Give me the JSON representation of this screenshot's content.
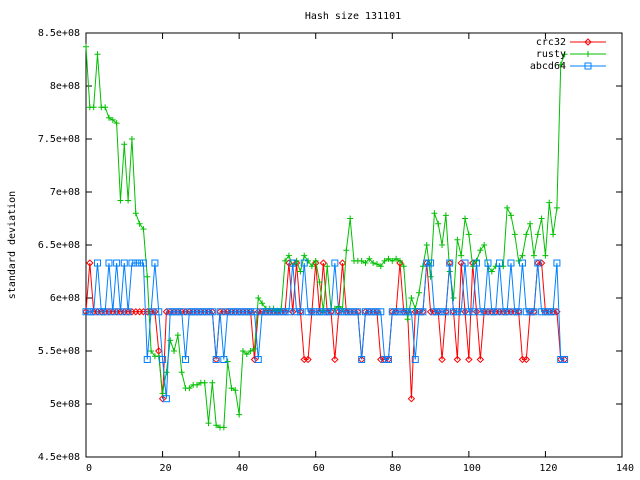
{
  "chart_data": {
    "type": "line",
    "title": "Hash size 131101",
    "y_label": "standard deviation",
    "xlim": [
      0,
      140
    ],
    "xticks": [
      0,
      20,
      40,
      60,
      80,
      100,
      120,
      140
    ],
    "ylim": [
      450000000.0,
      850000000.0
    ],
    "yticks": [
      {
        "value": 450000000.0,
        "label": "4.5e+08"
      },
      {
        "value": 500000000.0,
        "label": "5e+08"
      },
      {
        "value": 550000000.0,
        "label": "5.5e+08"
      },
      {
        "value": 600000000.0,
        "label": "6e+08"
      },
      {
        "value": 650000000.0,
        "label": "6.5e+08"
      },
      {
        "value": 700000000.0,
        "label": "7e+08"
      },
      {
        "value": 750000000.0,
        "label": "7.5e+08"
      },
      {
        "value": 800000000.0,
        "label": "8e+08"
      },
      {
        "value": 850000000.0,
        "label": "8.5e+08"
      }
    ],
    "grid": false,
    "legend": "top right",
    "x": [
      0,
      1,
      2,
      3,
      4,
      5,
      6,
      7,
      8,
      9,
      10,
      11,
      12,
      13,
      14,
      15,
      16,
      17,
      18,
      19,
      20,
      21,
      22,
      23,
      24,
      25,
      26,
      27,
      28,
      29,
      30,
      31,
      32,
      33,
      34,
      35,
      36,
      37,
      38,
      39,
      40,
      41,
      42,
      43,
      44,
      45,
      46,
      47,
      48,
      49,
      50,
      51,
      52,
      53,
      54,
      55,
      56,
      57,
      58,
      59,
      60,
      61,
      62,
      63,
      64,
      65,
      66,
      67,
      68,
      69,
      70,
      71,
      72,
      73,
      74,
      75,
      76,
      77,
      78,
      79,
      80,
      81,
      82,
      83,
      84,
      85,
      86,
      87,
      88,
      89,
      90,
      91,
      92,
      93,
      94,
      95,
      96,
      97,
      98,
      99,
      100,
      101,
      102,
      103,
      104,
      105,
      106,
      107,
      108,
      109,
      110,
      111,
      112,
      113,
      114,
      115,
      116,
      117,
      118,
      119,
      120,
      121,
      122,
      123,
      124,
      125
    ],
    "series": [
      {
        "name": "crc32",
        "color": "#ff0000",
        "marker": "diamond",
        "values": [
          587000000.0,
          633000000.0,
          587000000.0,
          587000000.0,
          587000000.0,
          587000000.0,
          587000000.0,
          587000000.0,
          587000000.0,
          587000000.0,
          587000000.0,
          587000000.0,
          587000000.0,
          587000000.0,
          587000000.0,
          587000000.0,
          587000000.0,
          587000000.0,
          587000000.0,
          550000000.0,
          505000000.0,
          587000000.0,
          587000000.0,
          587000000.0,
          587000000.0,
          587000000.0,
          587000000.0,
          587000000.0,
          587000000.0,
          587000000.0,
          587000000.0,
          587000000.0,
          587000000.0,
          587000000.0,
          542000000.0,
          587000000.0,
          587000000.0,
          587000000.0,
          587000000.0,
          587000000.0,
          587000000.0,
          587000000.0,
          587000000.0,
          587000000.0,
          542000000.0,
          587000000.0,
          587000000.0,
          587000000.0,
          587000000.0,
          587000000.0,
          587000000.0,
          587000000.0,
          587000000.0,
          633000000.0,
          587000000.0,
          633000000.0,
          587000000.0,
          542000000.0,
          542000000.0,
          587000000.0,
          633000000.0,
          587000000.0,
          633000000.0,
          587000000.0,
          587000000.0,
          542000000.0,
          587000000.0,
          633000000.0,
          587000000.0,
          587000000.0,
          587000000.0,
          587000000.0,
          542000000.0,
          587000000.0,
          587000000.0,
          587000000.0,
          587000000.0,
          542000000.0,
          542000000.0,
          542000000.0,
          587000000.0,
          587000000.0,
          633000000.0,
          587000000.0,
          587000000.0,
          505000000.0,
          587000000.0,
          587000000.0,
          587000000.0,
          633000000.0,
          587000000.0,
          587000000.0,
          587000000.0,
          542000000.0,
          587000000.0,
          633000000.0,
          587000000.0,
          542000000.0,
          633000000.0,
          587000000.0,
          542000000.0,
          633000000.0,
          587000000.0,
          542000000.0,
          587000000.0,
          587000000.0,
          587000000.0,
          587000000.0,
          587000000.0,
          587000000.0,
          587000000.0,
          587000000.0,
          587000000.0,
          587000000.0,
          542000000.0,
          542000000.0,
          587000000.0,
          587000000.0,
          633000000.0,
          633000000.0,
          587000000.0,
          587000000.0,
          587000000.0,
          587000000.0,
          542000000.0,
          542000000.0
        ]
      },
      {
        "name": "rusty",
        "color": "#00c000",
        "marker": "plus",
        "values": [
          837000000.0,
          780000000.0,
          780000000.0,
          830000000.0,
          780000000.0,
          780000000.0,
          770000000.0,
          768000000.0,
          765000000.0,
          692000000.0,
          745000000.0,
          692000000.0,
          750000000.0,
          680000000.0,
          670000000.0,
          665000000.0,
          620000000.0,
          550000000.0,
          545000000.0,
          545000000.0,
          510000000.0,
          530000000.0,
          560000000.0,
          550000000.0,
          565000000.0,
          530000000.0,
          515000000.0,
          515000000.0,
          518000000.0,
          518000000.0,
          520000000.0,
          520000000.0,
          482000000.0,
          520000000.0,
          480000000.0,
          478000000.0,
          478000000.0,
          540000000.0,
          515000000.0,
          513000000.0,
          490000000.0,
          550000000.0,
          547000000.0,
          550000000.0,
          552000000.0,
          600000000.0,
          595000000.0,
          590000000.0,
          590000000.0,
          590000000.0,
          588000000.0,
          590000000.0,
          635000000.0,
          640000000.0,
          630000000.0,
          635000000.0,
          625000000.0,
          640000000.0,
          635000000.0,
          630000000.0,
          635000000.0,
          615000000.0,
          588000000.0,
          630000000.0,
          590000000.0,
          590000000.0,
          592000000.0,
          590000000.0,
          645000000.0,
          675000000.0,
          635000000.0,
          635000000.0,
          635000000.0,
          633000000.0,
          637000000.0,
          633000000.0,
          632000000.0,
          630000000.0,
          635000000.0,
          637000000.0,
          635000000.0,
          637000000.0,
          635000000.0,
          630000000.0,
          580000000.0,
          600000000.0,
          590000000.0,
          605000000.0,
          630000000.0,
          650000000.0,
          620000000.0,
          680000000.0,
          670000000.0,
          650000000.0,
          678000000.0,
          625000000.0,
          600000000.0,
          655000000.0,
          640000000.0,
          675000000.0,
          660000000.0,
          630000000.0,
          635000000.0,
          645000000.0,
          650000000.0,
          630000000.0,
          625000000.0,
          630000000.0,
          630000000.0,
          630000000.0,
          685000000.0,
          678000000.0,
          660000000.0,
          635000000.0,
          640000000.0,
          660000000.0,
          670000000.0,
          640000000.0,
          660000000.0,
          675000000.0,
          640000000.0,
          690000000.0,
          660000000.0,
          685000000.0,
          820000000.0,
          830000000.0
        ]
      },
      {
        "name": "abcd64",
        "color": "#0080ff",
        "marker": "square",
        "values": [
          587000000.0,
          587000000.0,
          587000000.0,
          633000000.0,
          587000000.0,
          587000000.0,
          633000000.0,
          587000000.0,
          633000000.0,
          587000000.0,
          633000000.0,
          587000000.0,
          633000000.0,
          633000000.0,
          633000000.0,
          633000000.0,
          542000000.0,
          587000000.0,
          633000000.0,
          587000000.0,
          542000000.0,
          505000000.0,
          587000000.0,
          587000000.0,
          587000000.0,
          587000000.0,
          542000000.0,
          587000000.0,
          587000000.0,
          587000000.0,
          587000000.0,
          587000000.0,
          587000000.0,
          587000000.0,
          542000000.0,
          587000000.0,
          542000000.0,
          587000000.0,
          587000000.0,
          587000000.0,
          587000000.0,
          587000000.0,
          587000000.0,
          587000000.0,
          587000000.0,
          542000000.0,
          587000000.0,
          587000000.0,
          587000000.0,
          587000000.0,
          587000000.0,
          587000000.0,
          587000000.0,
          587000000.0,
          633000000.0,
          587000000.0,
          587000000.0,
          633000000.0,
          587000000.0,
          587000000.0,
          587000000.0,
          587000000.0,
          587000000.0,
          587000000.0,
          587000000.0,
          633000000.0,
          587000000.0,
          587000000.0,
          587000000.0,
          587000000.0,
          587000000.0,
          587000000.0,
          542000000.0,
          587000000.0,
          587000000.0,
          587000000.0,
          587000000.0,
          587000000.0,
          542000000.0,
          542000000.0,
          587000000.0,
          587000000.0,
          587000000.0,
          587000000.0,
          587000000.0,
          587000000.0,
          542000000.0,
          587000000.0,
          587000000.0,
          633000000.0,
          633000000.0,
          587000000.0,
          587000000.0,
          587000000.0,
          587000000.0,
          633000000.0,
          587000000.0,
          587000000.0,
          587000000.0,
          633000000.0,
          587000000.0,
          587000000.0,
          633000000.0,
          587000000.0,
          587000000.0,
          633000000.0,
          587000000.0,
          587000000.0,
          633000000.0,
          587000000.0,
          587000000.0,
          633000000.0,
          587000000.0,
          587000000.0,
          633000000.0,
          587000000.0,
          587000000.0,
          587000000.0,
          633000000.0,
          587000000.0,
          587000000.0,
          587000000.0,
          587000000.0,
          633000000.0,
          542000000.0,
          542000000.0
        ]
      }
    ]
  }
}
